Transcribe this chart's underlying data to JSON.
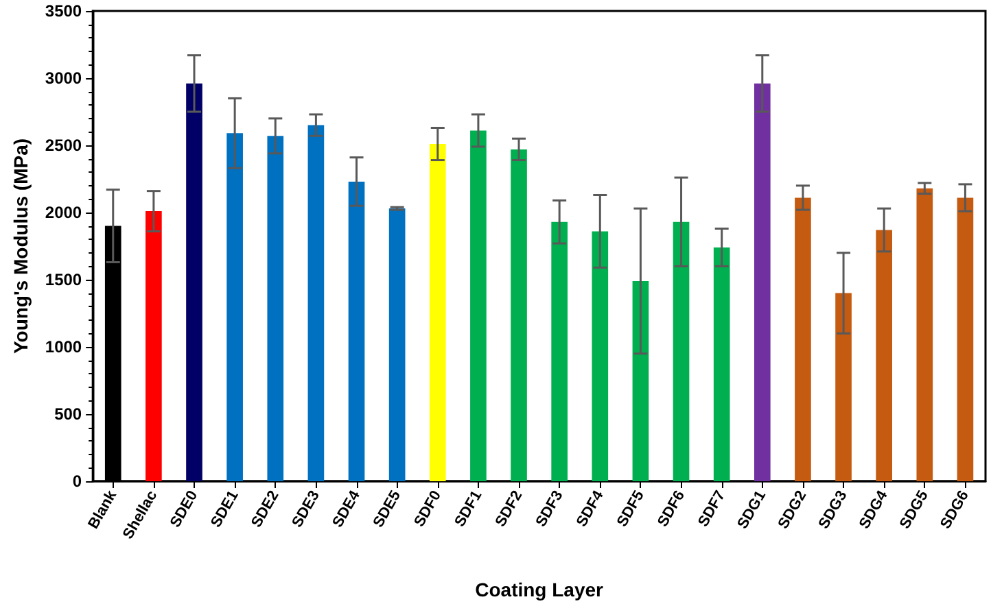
{
  "chart_data": {
    "type": "bar",
    "xlabel": "Coating Layer",
    "ylabel": "Young's Modulus (MPa)",
    "categories": [
      "Blank",
      "Shellac",
      "SDE0",
      "SDE1",
      "SDE2",
      "SDE3",
      "SDE4",
      "SDE5",
      "SDF0",
      "SDF1",
      "SDF2",
      "SDF3",
      "SDF4",
      "SDF5",
      "SDF6",
      "SDF7",
      "SDG1",
      "SDG2",
      "SDG3",
      "SDG4",
      "SDG5",
      "SDG6"
    ],
    "values": [
      1900,
      2010,
      2960,
      2590,
      2570,
      2650,
      2230,
      2030,
      2510,
      2610,
      2470,
      1930,
      1860,
      1490,
      1930,
      1740,
      2960,
      2110,
      1400,
      1870,
      2180,
      2110
    ],
    "errors": [
      270,
      150,
      210,
      260,
      130,
      80,
      180,
      10,
      120,
      120,
      80,
      160,
      270,
      540,
      330,
      140,
      210,
      90,
      300,
      160,
      40,
      100
    ],
    "colors": [
      "#000000",
      "#ff0000",
      "#000066",
      "#0070c0",
      "#0070c0",
      "#0070c0",
      "#0070c0",
      "#0070c0",
      "#ffff00",
      "#00b050",
      "#00b050",
      "#00b050",
      "#00b050",
      "#00b050",
      "#00b050",
      "#00b050",
      "#7030a0",
      "#c55a11",
      "#c55a11",
      "#c55a11",
      "#c55a11",
      "#c55a11"
    ],
    "ylim": [
      0,
      3500
    ],
    "yticks": [
      0,
      500,
      1000,
      1500,
      2000,
      2500,
      3000,
      3500
    ],
    "grid": false
  }
}
